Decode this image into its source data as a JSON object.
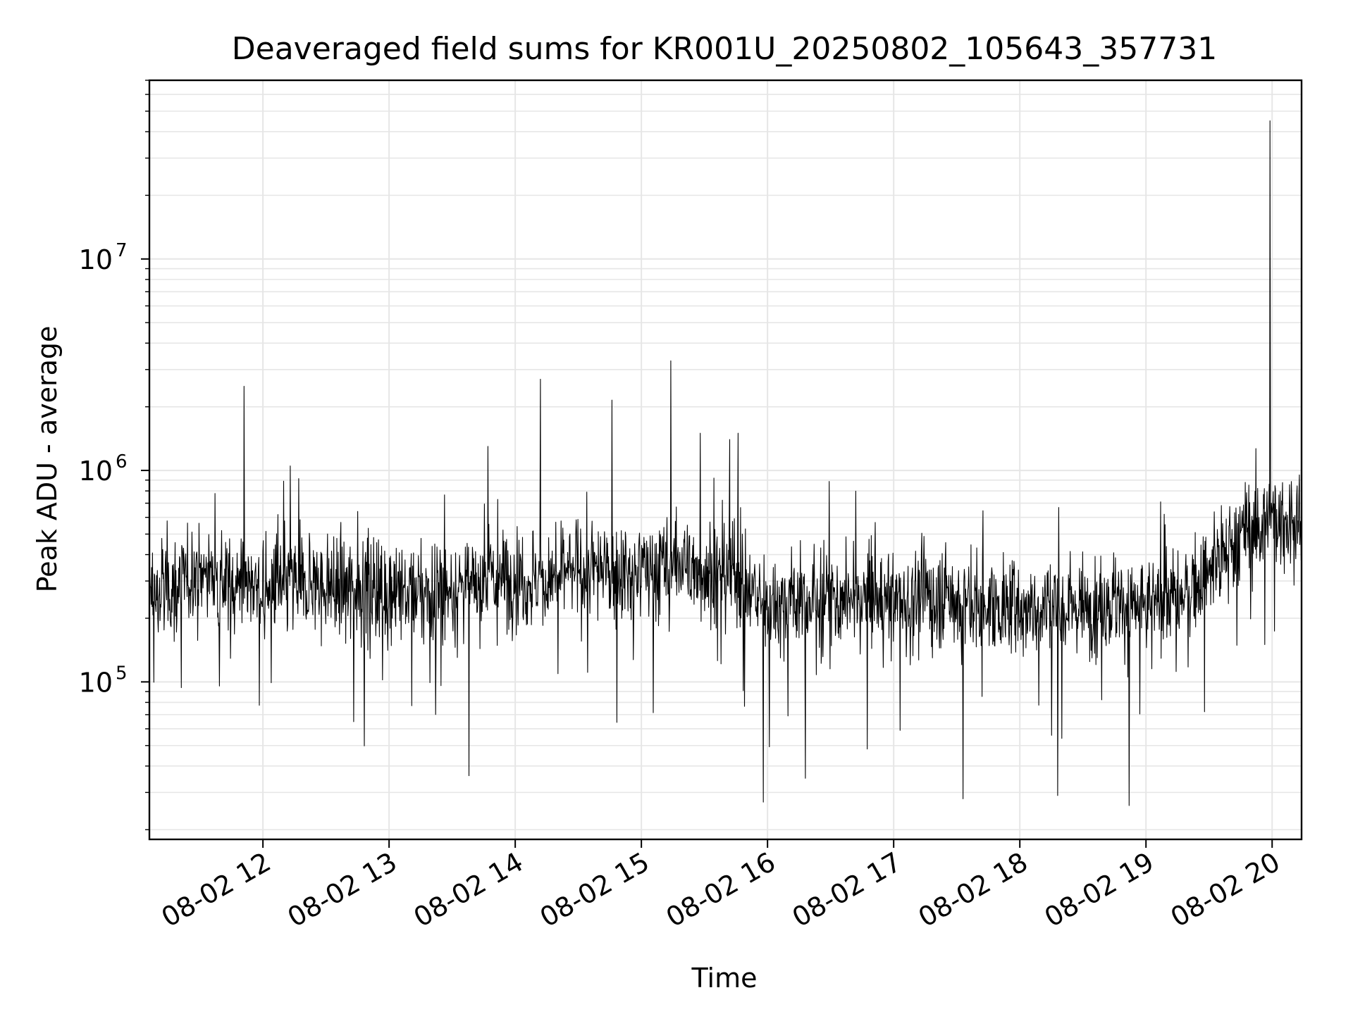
{
  "chart_data": {
    "type": "line",
    "title": "Deaveraged field sums for KR001U_20250802_105643_357731",
    "xlabel": "Time",
    "ylabel": "Peak ADU - average",
    "yscale": "log",
    "ylim": [
      18000,
      70000000
    ],
    "xlim": [
      "2025-08-02 11:06",
      "2025-08-02 20:14"
    ],
    "x_ticks": [
      {
        "time": "2025-08-02 12:00",
        "label": "08-02 12"
      },
      {
        "time": "2025-08-02 13:00",
        "label": "08-02 13"
      },
      {
        "time": "2025-08-02 14:00",
        "label": "08-02 14"
      },
      {
        "time": "2025-08-02 15:00",
        "label": "08-02 15"
      },
      {
        "time": "2025-08-02 16:00",
        "label": "08-02 16"
      },
      {
        "time": "2025-08-02 17:00",
        "label": "08-02 17"
      },
      {
        "time": "2025-08-02 18:00",
        "label": "08-02 18"
      },
      {
        "time": "2025-08-02 19:00",
        "label": "08-02 19"
      },
      {
        "time": "2025-08-02 20:00",
        "label": "08-02 20"
      }
    ],
    "y_ticks": [
      {
        "value": 100000,
        "base": "10",
        "exp": "5"
      },
      {
        "value": 1000000,
        "base": "10",
        "exp": "6"
      },
      {
        "value": 10000000,
        "base": "10",
        "exp": "7"
      }
    ],
    "grid": true,
    "line_color": "#000000",
    "grid_color": "#e6e6e6",
    "series": [
      {
        "x": [
          "2025-08-02 11:06",
          "2025-08-02 11:15",
          "2025-08-02 11:30",
          "2025-08-02 11:45",
          "2025-08-02 11:52",
          "2025-08-02 12:00",
          "2025-08-02 12:15",
          "2025-08-02 12:30",
          "2025-08-02 12:45",
          "2025-08-02 13:00",
          "2025-08-02 13:15",
          "2025-08-02 13:30",
          "2025-08-02 13:45",
          "2025-08-02 14:00",
          "2025-08-02 14:12",
          "2025-08-02 14:30",
          "2025-08-02 14:45",
          "2025-08-02 15:00",
          "2025-08-02 15:15",
          "2025-08-02 15:30",
          "2025-08-02 15:45",
          "2025-08-02 16:00",
          "2025-08-02 16:15",
          "2025-08-02 16:30",
          "2025-08-02 16:45",
          "2025-08-02 17:00",
          "2025-08-02 17:15",
          "2025-08-02 17:30",
          "2025-08-02 17:45",
          "2025-08-02 18:00",
          "2025-08-02 18:15",
          "2025-08-02 18:30",
          "2025-08-02 18:45",
          "2025-08-02 19:00",
          "2025-08-02 19:15",
          "2025-08-02 19:30",
          "2025-08-02 19:45",
          "2025-08-02 20:00",
          "2025-08-02 20:14"
        ],
        "base": [
          250000,
          270000,
          330000,
          300000,
          300000,
          260000,
          290000,
          280000,
          280000,
          270000,
          260000,
          270000,
          300000,
          310000,
          300000,
          330000,
          330000,
          330000,
          350000,
          340000,
          320000,
          230000,
          240000,
          240000,
          250000,
          240000,
          250000,
          240000,
          230000,
          220000,
          230000,
          230000,
          240000,
          220000,
          250000,
          320000,
          500000,
          600000,
          520000
        ]
      }
    ],
    "spikes": [
      {
        "x": "2025-08-02 11:51",
        "value": 2500000
      },
      {
        "x": "2025-08-02 12:13",
        "value": 1050000
      },
      {
        "x": "2025-08-02 13:47",
        "value": 1300000
      },
      {
        "x": "2025-08-02 14:12",
        "value": 2700000
      },
      {
        "x": "2025-08-02 14:46",
        "value": 2150000
      },
      {
        "x": "2025-08-02 15:14",
        "value": 3300000
      },
      {
        "x": "2025-08-02 15:28",
        "value": 1500000
      },
      {
        "x": "2025-08-02 15:42",
        "value": 1400000
      },
      {
        "x": "2025-08-02 15:46",
        "value": 1500000
      },
      {
        "x": "2025-08-02 19:59",
        "value": 45000000
      }
    ],
    "dips": [
      {
        "x": "2025-08-02 13:38",
        "value": 36000
      },
      {
        "x": "2025-08-02 15:58",
        "value": 27000
      },
      {
        "x": "2025-08-02 16:18",
        "value": 35000
      },
      {
        "x": "2025-08-02 17:33",
        "value": 28000
      },
      {
        "x": "2025-08-02 18:18",
        "value": 29000
      },
      {
        "x": "2025-08-02 18:52",
        "value": 26000
      }
    ]
  }
}
